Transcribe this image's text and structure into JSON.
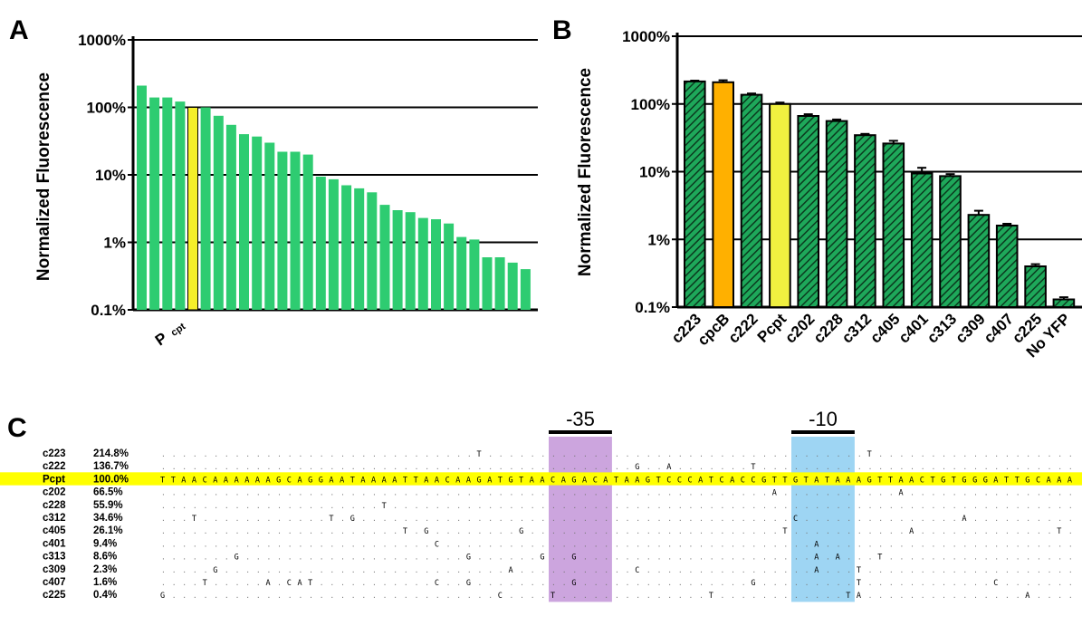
{
  "chart_data": [
    {
      "panel": "A",
      "type": "bar",
      "ylabel": "Normalized Fluorescence",
      "yscale": "log",
      "ylim": [
        0.1,
        1000
      ],
      "yticks": [
        "0.1%",
        "1%",
        "10%",
        "100%",
        "1000%"
      ],
      "grid": "horizontal",
      "highlight_label": "P",
      "highlight_label_sub": "cpt",
      "highlight_index": 4,
      "colors": {
        "bar": "#2ecc71",
        "highlight": "#f5ef2a"
      },
      "values": [
        210,
        140,
        140,
        122,
        100,
        100,
        75,
        55,
        40,
        37,
        30,
        22,
        22,
        20,
        9.4,
        8.6,
        7.0,
        6.3,
        5.5,
        3.6,
        3.0,
        2.8,
        2.3,
        2.2,
        1.9,
        1.2,
        1.1,
        0.6,
        0.6,
        0.5,
        0.4
      ]
    },
    {
      "panel": "B",
      "type": "bar",
      "ylabel": "Normalized Fluorescence",
      "yscale": "log",
      "ylim": [
        0.1,
        1000
      ],
      "yticks": [
        "0.1%",
        "1%",
        "10%",
        "100%",
        "1000%"
      ],
      "grid": "horizontal",
      "categories": [
        "c223",
        "cpcB",
        "c222",
        "Pcpt",
        "c202",
        "c228",
        "c312",
        "c405",
        "c401",
        "c313",
        "c309",
        "c407",
        "c225",
        "No YFP"
      ],
      "values": [
        214.8,
        209,
        136.7,
        100,
        66.5,
        55.9,
        34.6,
        26.1,
        9.4,
        8.6,
        2.3,
        1.6,
        0.4,
        0.13
      ],
      "errors": [
        6,
        15,
        6,
        5,
        4,
        3,
        1.5,
        2.5,
        2.0,
        0.6,
        0.35,
        0.1,
        0.03,
        0.01
      ],
      "fills": [
        "hatch",
        "orange",
        "hatch",
        "yellow",
        "hatch",
        "hatch",
        "hatch",
        "hatch",
        "hatch",
        "hatch",
        "hatch",
        "hatch",
        "hatch",
        "hatch"
      ],
      "colors": {
        "hatch_bg": "#1ea85a",
        "hatch_line": "#0b3a1f",
        "orange": "#ffb000",
        "yellow": "#f0f040"
      }
    }
  ],
  "panels": {
    "a": "A",
    "b": "B",
    "c": "C"
  },
  "alignment": {
    "box1_label": "-35",
    "box2_label": "-10",
    "colors": {
      "box1": "#c9a0dc",
      "box2": "#99d3f2",
      "ref": "#ffff00"
    },
    "reference": "TTAACAAAAAAGCAGGAATAAAATTAACAAGATGTAACAGACATAAGTCCCATCACCGTTGTATAAAGTTAACTGTGGGATTGCAAAAG",
    "rows": [
      {
        "name": "c223",
        "value": "214.8%",
        "subs": [
          {
            "i": 30,
            "b": "T"
          },
          {
            "i": 67,
            "b": "T"
          }
        ]
      },
      {
        "name": "c222",
        "value": "136.7%",
        "subs": [
          {
            "i": 45,
            "b": "G"
          },
          {
            "i": 48,
            "b": "A"
          },
          {
            "i": 56,
            "b": "T"
          }
        ]
      },
      {
        "name": "Pcpt",
        "value": "100.0%",
        "ref": true
      },
      {
        "name": "c202",
        "value": "66.5%",
        "subs": [
          {
            "i": 58,
            "b": "A"
          },
          {
            "i": 70,
            "b": "A"
          }
        ]
      },
      {
        "name": "c228",
        "value": "55.9%",
        "subs": [
          {
            "i": 21,
            "b": "T"
          }
        ]
      },
      {
        "name": "c312",
        "value": "34.6%",
        "subs": [
          {
            "i": 3,
            "b": "T"
          },
          {
            "i": 16,
            "b": "T"
          },
          {
            "i": 18,
            "b": "G"
          },
          {
            "i": 60,
            "b": "C"
          },
          {
            "i": 76,
            "b": "A"
          }
        ]
      },
      {
        "name": "c405",
        "value": "26.1%",
        "subs": [
          {
            "i": 23,
            "b": "T"
          },
          {
            "i": 25,
            "b": "G"
          },
          {
            "i": 34,
            "b": "G"
          },
          {
            "i": 59,
            "b": "T"
          },
          {
            "i": 71,
            "b": "A"
          },
          {
            "i": 85,
            "b": "T"
          }
        ]
      },
      {
        "name": "c401",
        "value": "9.4%",
        "subs": [
          {
            "i": 26,
            "b": "C"
          },
          {
            "i": 62,
            "b": "A"
          }
        ]
      },
      {
        "name": "c313",
        "value": "8.6%",
        "subs": [
          {
            "i": 7,
            "b": "G"
          },
          {
            "i": 29,
            "b": "G"
          },
          {
            "i": 36,
            "b": "G"
          },
          {
            "i": 39,
            "b": "G"
          },
          {
            "i": 62,
            "b": "A"
          },
          {
            "i": 64,
            "b": "A"
          },
          {
            "i": 68,
            "b": "T"
          }
        ]
      },
      {
        "name": "c309",
        "value": "2.3%",
        "subs": [
          {
            "i": 5,
            "b": "G"
          },
          {
            "i": 33,
            "b": "A"
          },
          {
            "i": 45,
            "b": "C"
          },
          {
            "i": 62,
            "b": "A"
          },
          {
            "i": 66,
            "b": "T"
          }
        ]
      },
      {
        "name": "c407",
        "value": "1.6%",
        "subs": [
          {
            "i": 4,
            "b": "T"
          },
          {
            "i": 10,
            "b": "A"
          },
          {
            "i": 12,
            "b": "C"
          },
          {
            "i": 13,
            "b": "A"
          },
          {
            "i": 14,
            "b": "T"
          },
          {
            "i": 26,
            "b": "C"
          },
          {
            "i": 29,
            "b": "G"
          },
          {
            "i": 39,
            "b": "G"
          },
          {
            "i": 56,
            "b": "G"
          },
          {
            "i": 66,
            "b": "T"
          },
          {
            "i": 79,
            "b": "C"
          }
        ]
      },
      {
        "name": "c225",
        "value": "0.4%",
        "subs": [
          {
            "i": 0,
            "b": "G"
          },
          {
            "i": 32,
            "b": "C"
          },
          {
            "i": 37,
            "b": "T"
          },
          {
            "i": 52,
            "b": "T"
          },
          {
            "i": 65,
            "b": "T"
          },
          {
            "i": 66,
            "b": "A"
          },
          {
            "i": 82,
            "b": "A"
          }
        ]
      }
    ]
  }
}
